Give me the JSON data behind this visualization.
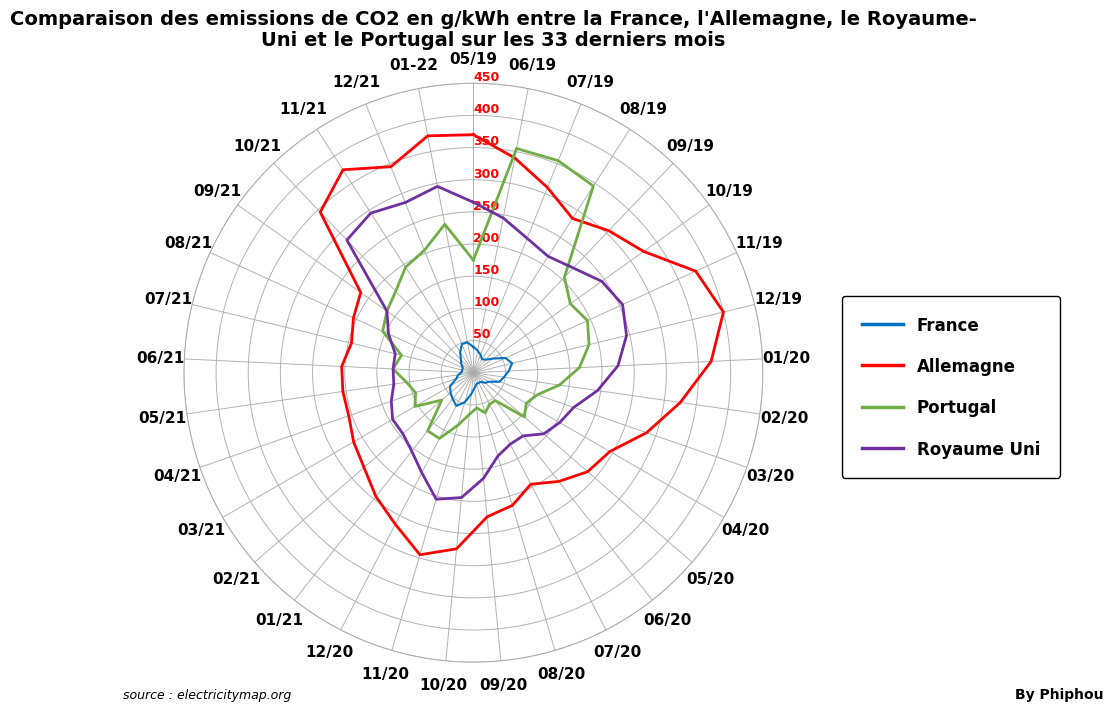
{
  "title_line1": "Comparaison des emissions de CO2 en g/kWh entre la France, l'Allemagne, le Royaume-",
  "title_line2": "Uni et le Portugal sur les 33 derniers mois",
  "categories": [
    "05/19",
    "06/19",
    "07/19",
    "08/19",
    "09/19",
    "10/19",
    "11/19",
    "12/19",
    "01/20",
    "02/20",
    "03/20",
    "04/20",
    "05/20",
    "06/20",
    "07/20",
    "08/20",
    "09/20",
    "10/20",
    "11/20",
    "12/20",
    "01/21",
    "02/21",
    "03/21",
    "04/21",
    "05/21",
    "06/21",
    "07/21",
    "08/21",
    "09/21",
    "10/21",
    "11/21",
    "12/21",
    "01-22"
  ],
  "France": [
    40,
    35,
    30,
    25,
    28,
    38,
    55,
    62,
    55,
    48,
    43,
    28,
    24,
    18,
    18,
    18,
    23,
    33,
    48,
    58,
    52,
    47,
    42,
    28,
    24,
    18,
    18,
    18,
    23,
    28,
    38,
    48,
    48
  ],
  "Allemagne": [
    370,
    340,
    310,
    285,
    305,
    325,
    380,
    400,
    370,
    325,
    285,
    245,
    235,
    215,
    195,
    215,
    225,
    275,
    295,
    265,
    245,
    225,
    215,
    205,
    205,
    205,
    195,
    205,
    215,
    345,
    375,
    345,
    375
  ],
  "Portugal": [
    175,
    355,
    355,
    345,
    205,
    185,
    195,
    185,
    165,
    135,
    105,
    95,
    105,
    55,
    55,
    65,
    55,
    65,
    85,
    115,
    115,
    65,
    105,
    95,
    105,
    125,
    115,
    155,
    165,
    175,
    195,
    205,
    235
  ],
  "RoyaumeUni": [
    265,
    245,
    225,
    215,
    225,
    245,
    255,
    245,
    225,
    195,
    165,
    155,
    145,
    125,
    125,
    135,
    165,
    195,
    205,
    175,
    155,
    145,
    145,
    135,
    125,
    125,
    125,
    145,
    165,
    285,
    295,
    285,
    295
  ],
  "colors": {
    "France": "#0070C0",
    "Allemagne": "#FF0000",
    "Portugal": "#70AD47",
    "RoyaumeUni": "#7030A0"
  },
  "r_max": 450,
  "r_ticks": [
    0,
    50,
    100,
    150,
    200,
    250,
    300,
    350,
    400,
    450
  ],
  "source_text": "source : electricitymap.org",
  "author_text": "By Phiphou",
  "background_color": "#FFFFFF",
  "grid_color": "#AAAAAA",
  "tick_label_color": "#FF0000",
  "tick_label_size": 9,
  "category_label_size": 11,
  "title_fontsize": 14
}
